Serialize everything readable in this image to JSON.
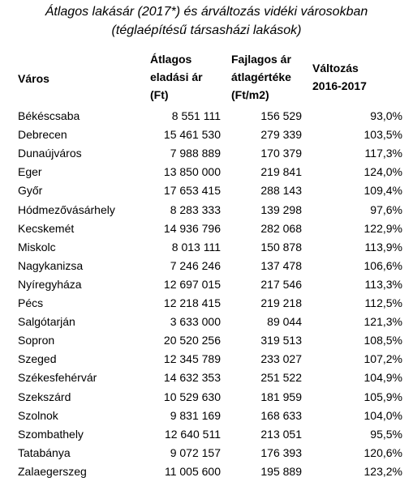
{
  "title": [
    "Átlagos lakásár (2017*) és árváltozás vidéki városokban",
    "(téglaépítésű társasházi lakások)"
  ],
  "table": {
    "header": [
      [
        "Város"
      ],
      [
        "Átlagos",
        "eladási ár",
        "(Ft)"
      ],
      [
        "Fajlagos ár",
        "átlagértéke",
        "(Ft/m2)"
      ],
      [
        "Változás",
        "2016-2017"
      ]
    ],
    "rows": [
      [
        "Békéscsaba",
        "8 551 111",
        "156 529",
        "93,0%"
      ],
      [
        "Debrecen",
        "15 461 530",
        "279 339",
        "103,5%"
      ],
      [
        "Dunaújváros",
        "7 988 889",
        "170 379",
        "117,3%"
      ],
      [
        "Eger",
        "13 850 000",
        "219 841",
        "124,0%"
      ],
      [
        "Győr",
        "17 653 415",
        "288 143",
        "109,4%"
      ],
      [
        "Hódmezővásárhely",
        "8 283 333",
        "139 298",
        "97,6%"
      ],
      [
        "Kecskemét",
        "14 936 796",
        "282 068",
        "122,9%"
      ],
      [
        "Miskolc",
        "8 013 111",
        "150 878",
        "113,9%"
      ],
      [
        "Nagykanizsa",
        "7 246 246",
        "137 478",
        "106,6%"
      ],
      [
        "Nyíregyháza",
        "12 697 015",
        "217 546",
        "113,3%"
      ],
      [
        "Pécs",
        "12 218 415",
        "219 218",
        "112,5%"
      ],
      [
        "Salgótarján",
        "3 633 000",
        "89 044",
        "121,3%"
      ],
      [
        "Sopron",
        "20 520 256",
        "319 513",
        "108,5%"
      ],
      [
        "Szeged",
        "12 345 789",
        "233 027",
        "107,2%"
      ],
      [
        "Székesfehérvár",
        "14 632 353",
        "251 522",
        "104,9%"
      ],
      [
        "Szekszárd",
        "10 529 630",
        "181 959",
        "105,9%"
      ],
      [
        "Szolnok",
        "9 831 169",
        "168 633",
        "104,0%"
      ],
      [
        "Szombathely",
        "12 640 511",
        "213 051",
        "95,5%"
      ],
      [
        "Tatabánya",
        "9 072 157",
        "176 393",
        "120,6%"
      ],
      [
        "Zalaegerszeg",
        "11 005 600",
        "195 889",
        "123,2%"
      ]
    ]
  }
}
